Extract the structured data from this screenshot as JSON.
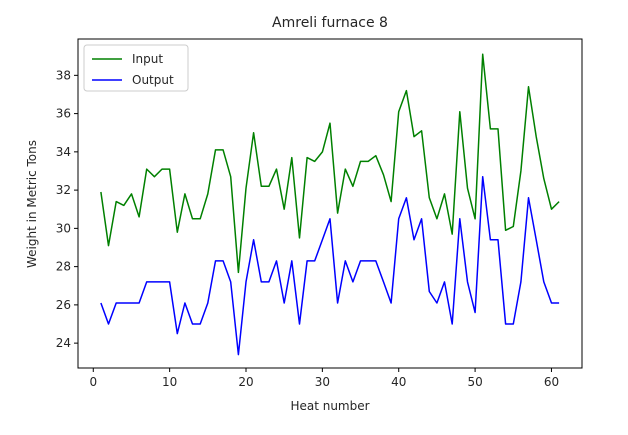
{
  "chart_data": {
    "type": "line",
    "title": "Amreli furnace 8",
    "xlabel": "Heat number",
    "ylabel": "Weight in Metric Tons",
    "xlim": [
      -2.0,
      64.0
    ],
    "ylim": [
      22.7,
      39.9
    ],
    "xticks": [
      0,
      10,
      20,
      30,
      40,
      50,
      60
    ],
    "yticks": [
      24,
      26,
      28,
      30,
      32,
      34,
      36,
      38
    ],
    "grid": false,
    "legend": "top-left",
    "x": [
      1,
      2,
      3,
      4,
      5,
      6,
      7,
      8,
      9,
      10,
      11,
      12,
      13,
      14,
      15,
      16,
      17,
      18,
      19,
      20,
      21,
      22,
      23,
      24,
      25,
      26,
      27,
      28,
      29,
      30,
      31,
      32,
      33,
      34,
      35,
      36,
      37,
      38,
      39,
      40,
      41,
      42,
      43,
      44,
      45,
      46,
      47,
      48,
      49,
      50,
      51,
      52,
      53,
      54,
      55,
      56,
      57,
      58,
      59,
      60,
      61
    ],
    "series": [
      {
        "name": "Input",
        "color": "#008000",
        "values": [
          31.9,
          29.1,
          31.4,
          31.2,
          31.8,
          30.6,
          33.1,
          32.7,
          33.1,
          33.1,
          29.8,
          31.8,
          30.5,
          30.5,
          31.8,
          34.1,
          34.1,
          32.7,
          27.7,
          32.1,
          35.0,
          32.2,
          32.2,
          33.1,
          31.0,
          33.7,
          29.5,
          33.7,
          33.5,
          34.0,
          35.5,
          30.8,
          33.1,
          32.2,
          33.5,
          33.5,
          33.8,
          32.8,
          31.4,
          36.1,
          37.2,
          34.8,
          35.1,
          31.6,
          30.5,
          31.8,
          29.7,
          36.1,
          32.1,
          30.5,
          39.1,
          35.2,
          35.2,
          29.9,
          30.1,
          33.0,
          37.4,
          34.8,
          32.6,
          31.0,
          31.4
        ]
      },
      {
        "name": "Output",
        "color": "#0000ff",
        "values": [
          26.1,
          25.0,
          26.1,
          26.1,
          26.1,
          26.1,
          27.2,
          27.2,
          27.2,
          27.2,
          24.5,
          26.1,
          25.0,
          25.0,
          26.1,
          28.3,
          28.3,
          27.2,
          23.4,
          27.2,
          29.4,
          27.2,
          27.2,
          28.3,
          26.1,
          28.3,
          25.0,
          28.3,
          28.3,
          29.4,
          30.5,
          26.1,
          28.3,
          27.2,
          28.3,
          28.3,
          28.3,
          27.2,
          26.1,
          30.5,
          31.6,
          29.4,
          30.5,
          26.7,
          26.1,
          27.2,
          25.0,
          30.5,
          27.2,
          25.6,
          32.7,
          29.4,
          29.4,
          25.0,
          25.0,
          27.2,
          31.6,
          29.4,
          27.2,
          26.1,
          26.1
        ]
      }
    ]
  }
}
